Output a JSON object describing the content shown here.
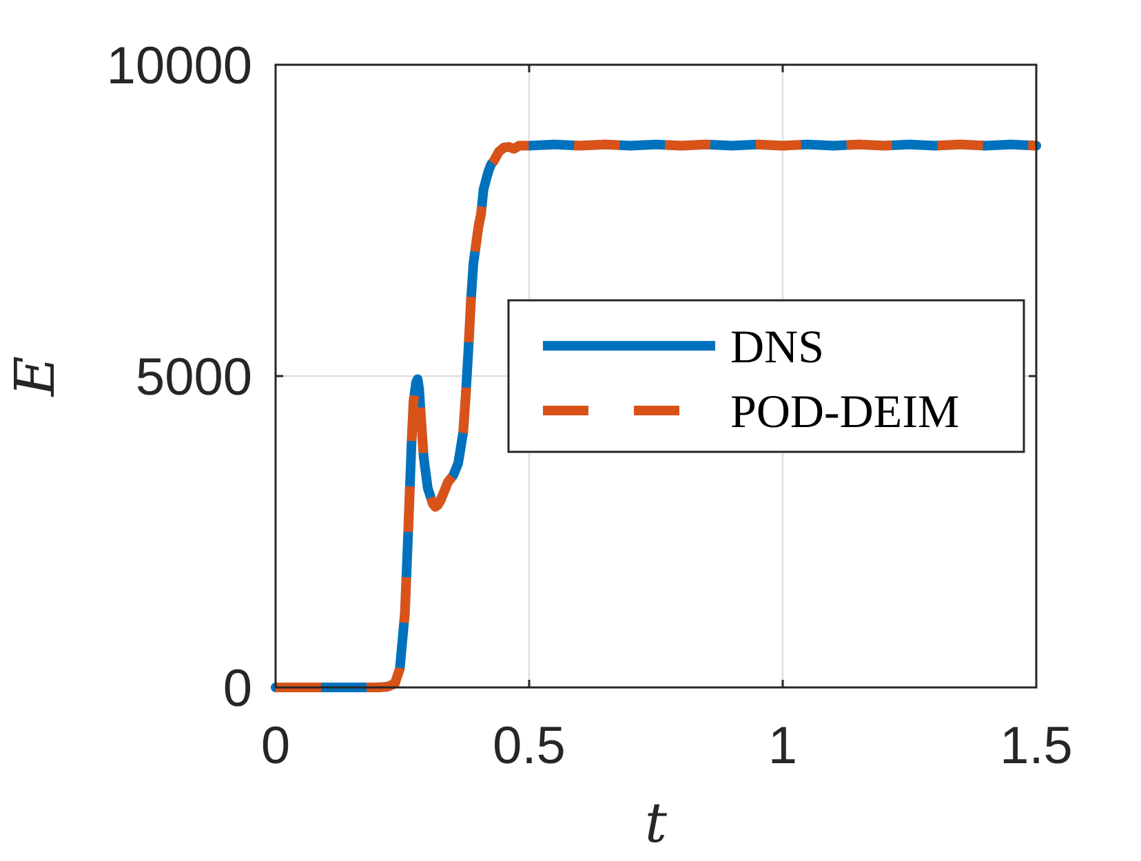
{
  "chart_data": {
    "type": "line",
    "xlabel": "t",
    "ylabel": "E",
    "xlim": [
      0,
      1.5
    ],
    "ylim": [
      0,
      10000
    ],
    "xticks": [
      0,
      0.5,
      1,
      1.5
    ],
    "xtick_labels": [
      "0",
      "0.5",
      "1",
      "1.5"
    ],
    "yticks": [
      0,
      5000,
      10000
    ],
    "ytick_labels": [
      "0",
      "5000",
      "10000"
    ],
    "grid": true,
    "legend_position": "center-right",
    "series": [
      {
        "name": "DNS",
        "style": "solid",
        "color": "#0072BD",
        "x": [
          0,
          0.1,
          0.2,
          0.22,
          0.235,
          0.245,
          0.255,
          0.262,
          0.268,
          0.272,
          0.277,
          0.28,
          0.283,
          0.287,
          0.292,
          0.3,
          0.31,
          0.315,
          0.32,
          0.325,
          0.33,
          0.335,
          0.34,
          0.35,
          0.36,
          0.37,
          0.375,
          0.38,
          0.385,
          0.39,
          0.395,
          0.4,
          0.405,
          0.41,
          0.42,
          0.425,
          0.43,
          0.44,
          0.45,
          0.46,
          0.47,
          0.48,
          0.5,
          0.55,
          0.6,
          0.65,
          0.7,
          0.75,
          0.8,
          0.85,
          0.9,
          0.95,
          1.0,
          1.05,
          1.1,
          1.15,
          1.2,
          1.25,
          1.3,
          1.35,
          1.4,
          1.45,
          1.5
        ],
        "y": [
          0,
          0,
          0,
          10,
          60,
          300,
          1200,
          2600,
          3900,
          4600,
          4900,
          4950,
          4800,
          4300,
          3700,
          3200,
          2950,
          2900,
          2930,
          3000,
          3100,
          3200,
          3300,
          3400,
          3600,
          4100,
          4700,
          5400,
          6200,
          6800,
          7100,
          7400,
          7600,
          8000,
          8300,
          8400,
          8450,
          8600,
          8670,
          8680,
          8650,
          8700,
          8700,
          8720,
          8700,
          8720,
          8700,
          8720,
          8700,
          8720,
          8700,
          8720,
          8700,
          8720,
          8700,
          8720,
          8700,
          8720,
          8700,
          8720,
          8700,
          8720,
          8700
        ]
      },
      {
        "name": "POD-DEIM",
        "style": "dashed",
        "color": "#D95319",
        "x": [
          0,
          0.1,
          0.2,
          0.22,
          0.235,
          0.245,
          0.255,
          0.262,
          0.268,
          0.272,
          0.277,
          0.28,
          0.283,
          0.287,
          0.292,
          0.3,
          0.31,
          0.315,
          0.32,
          0.325,
          0.33,
          0.335,
          0.34,
          0.35,
          0.36,
          0.37,
          0.375,
          0.38,
          0.385,
          0.39,
          0.395,
          0.4,
          0.405,
          0.41,
          0.42,
          0.425,
          0.43,
          0.44,
          0.45,
          0.46,
          0.47,
          0.48,
          0.5,
          0.55,
          0.6,
          0.65,
          0.7,
          0.75,
          0.8,
          0.85,
          0.9,
          0.95,
          1.0,
          1.05,
          1.1,
          1.15,
          1.2,
          1.25,
          1.3,
          1.35,
          1.4,
          1.45,
          1.5
        ],
        "y": [
          0,
          0,
          0,
          10,
          60,
          300,
          1200,
          2600,
          3900,
          4600,
          4900,
          4950,
          4800,
          4300,
          3700,
          3200,
          2950,
          2900,
          2930,
          3000,
          3100,
          3200,
          3300,
          3400,
          3600,
          4100,
          4700,
          5400,
          6200,
          6800,
          7100,
          7400,
          7600,
          8000,
          8300,
          8400,
          8450,
          8600,
          8670,
          8680,
          8650,
          8700,
          8700,
          8720,
          8700,
          8720,
          8700,
          8720,
          8700,
          8720,
          8700,
          8720,
          8700,
          8720,
          8700,
          8720,
          8700,
          8720,
          8700,
          8720,
          8700,
          8720,
          8700
        ]
      }
    ]
  }
}
